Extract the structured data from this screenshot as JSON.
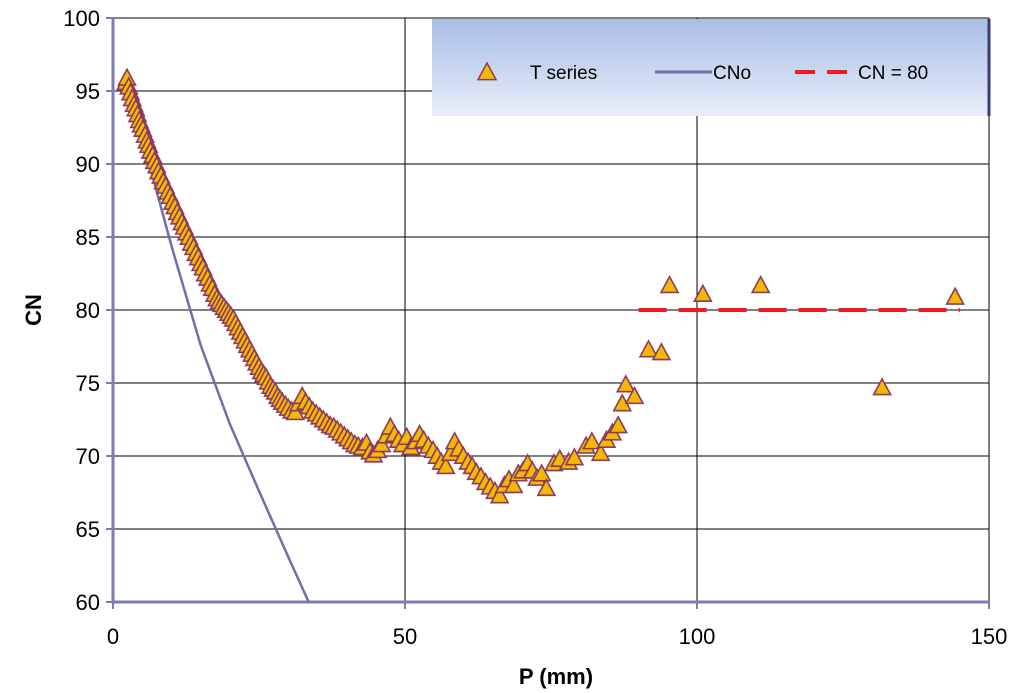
{
  "chart_data": {
    "type": "scatter",
    "title": "",
    "xlabel": "P (mm)",
    "ylabel": "CN",
    "xlim": [
      0,
      150
    ],
    "ylim": [
      60,
      100
    ],
    "xticks": [
      0,
      50,
      100,
      150
    ],
    "yticks": [
      60,
      65,
      70,
      75,
      80,
      85,
      90,
      95,
      100
    ],
    "grid": {
      "vertical": true,
      "horizontal": true
    },
    "legend_position": "top-right",
    "colors": {
      "marker_fill": "#f5b800",
      "marker_edge": "#8b3a62",
      "cno_line": "#7070a8",
      "cn80_line": "#ee1c1c",
      "grid": "#000000",
      "axis": "#7c7cb4",
      "legend_bg_top": "#a9bde6",
      "legend_bg_bottom": "#e9eef9"
    },
    "series": [
      {
        "name": "T series",
        "kind": "scatter",
        "marker": "triangle",
        "points": [
          [
            2.2,
            95.6
          ],
          [
            2.4,
            95.9
          ],
          [
            2.7,
            95.3
          ],
          [
            3.0,
            94.9
          ],
          [
            3.3,
            94.5
          ],
          [
            3.6,
            94.1
          ],
          [
            3.9,
            93.8
          ],
          [
            4.2,
            93.4
          ],
          [
            4.5,
            93.0
          ],
          [
            4.8,
            92.7
          ],
          [
            5.1,
            92.4
          ],
          [
            5.5,
            92.0
          ],
          [
            5.8,
            91.6
          ],
          [
            6.1,
            91.3
          ],
          [
            6.4,
            90.9
          ],
          [
            6.8,
            90.6
          ],
          [
            7.1,
            90.2
          ],
          [
            7.5,
            89.9
          ],
          [
            7.8,
            89.5
          ],
          [
            8.2,
            89.2
          ],
          [
            8.6,
            88.8
          ],
          [
            9.0,
            88.5
          ],
          [
            9.4,
            88.1
          ],
          [
            9.8,
            87.8
          ],
          [
            10.2,
            87.4
          ],
          [
            10.6,
            87.1
          ],
          [
            11.0,
            86.7
          ],
          [
            11.4,
            86.4
          ],
          [
            11.8,
            86.0
          ],
          [
            12.2,
            85.7
          ],
          [
            12.6,
            85.3
          ],
          [
            13.0,
            85.0
          ],
          [
            13.4,
            84.6
          ],
          [
            13.8,
            84.3
          ],
          [
            14.2,
            83.9
          ],
          [
            14.6,
            83.6
          ],
          [
            15.0,
            83.2
          ],
          [
            15.4,
            82.9
          ],
          [
            15.8,
            82.5
          ],
          [
            16.2,
            82.2
          ],
          [
            16.6,
            81.8
          ],
          [
            17.0,
            81.5
          ],
          [
            17.4,
            81.1
          ],
          [
            17.8,
            80.8
          ],
          [
            18.2,
            80.6
          ],
          [
            18.6,
            80.4
          ],
          [
            19.0,
            80.2
          ],
          [
            19.4,
            80.0
          ],
          [
            19.8,
            79.8
          ],
          [
            20.2,
            79.6
          ],
          [
            20.6,
            79.4
          ],
          [
            21.0,
            79.1
          ],
          [
            21.4,
            78.8
          ],
          [
            21.8,
            78.5
          ],
          [
            22.2,
            78.2
          ],
          [
            22.6,
            77.9
          ],
          [
            23.0,
            77.6
          ],
          [
            23.4,
            77.3
          ],
          [
            23.8,
            77.0
          ],
          [
            24.2,
            76.7
          ],
          [
            24.6,
            76.4
          ],
          [
            25.0,
            76.1
          ],
          [
            25.4,
            75.8
          ],
          [
            25.8,
            75.6
          ],
          [
            26.2,
            75.4
          ],
          [
            26.6,
            75.1
          ],
          [
            27.0,
            74.8
          ],
          [
            27.4,
            74.6
          ],
          [
            27.8,
            74.4
          ],
          [
            28.2,
            74.1
          ],
          [
            28.6,
            73.9
          ],
          [
            29.0,
            73.7
          ],
          [
            29.5,
            73.5
          ],
          [
            30.0,
            73.3
          ],
          [
            30.6,
            73.1
          ],
          [
            31.2,
            73.0
          ],
          [
            31.8,
            73.6
          ],
          [
            32.4,
            74.1
          ],
          [
            33.0,
            73.7
          ],
          [
            33.6,
            73.4
          ],
          [
            34.2,
            73.1
          ],
          [
            34.8,
            72.9
          ],
          [
            35.4,
            72.7
          ],
          [
            36.0,
            72.5
          ],
          [
            36.6,
            72.3
          ],
          [
            37.2,
            72.1
          ],
          [
            37.8,
            72.0
          ],
          [
            38.4,
            71.8
          ],
          [
            39.0,
            71.6
          ],
          [
            39.6,
            71.4
          ],
          [
            40.2,
            71.2
          ],
          [
            40.8,
            71.0
          ],
          [
            41.4,
            70.8
          ],
          [
            42.0,
            70.7
          ],
          [
            42.7,
            70.6
          ],
          [
            43.4,
            70.9
          ],
          [
            44.0,
            70.3
          ],
          [
            44.6,
            70.1
          ],
          [
            45.3,
            70.4
          ],
          [
            46.0,
            70.8
          ],
          [
            46.8,
            71.4
          ],
          [
            47.5,
            72.0
          ],
          [
            48.2,
            71.5
          ],
          [
            48.9,
            71.1
          ],
          [
            49.6,
            70.8
          ],
          [
            50.3,
            71.3
          ],
          [
            51.0,
            70.6
          ],
          [
            51.8,
            71.0
          ],
          [
            52.5,
            71.5
          ],
          [
            53.2,
            71.1
          ],
          [
            54.0,
            70.7
          ],
          [
            54.8,
            70.4
          ],
          [
            55.5,
            70.0
          ],
          [
            56.2,
            69.6
          ],
          [
            57.0,
            69.3
          ],
          [
            57.8,
            70.2
          ],
          [
            58.5,
            71.0
          ],
          [
            59.2,
            70.5
          ],
          [
            60.0,
            70.0
          ],
          [
            60.8,
            69.6
          ],
          [
            61.5,
            69.3
          ],
          [
            62.2,
            68.9
          ],
          [
            63.0,
            68.6
          ],
          [
            63.8,
            68.2
          ],
          [
            64.6,
            67.9
          ],
          [
            65.4,
            67.6
          ],
          [
            66.2,
            67.3
          ],
          [
            67.0,
            68.0
          ],
          [
            67.8,
            68.4
          ],
          [
            68.6,
            68.0
          ],
          [
            69.4,
            68.8
          ],
          [
            70.2,
            69.0
          ],
          [
            71.0,
            69.5
          ],
          [
            71.8,
            69.0
          ],
          [
            72.6,
            68.5
          ],
          [
            73.4,
            68.8
          ],
          [
            74.2,
            67.8
          ],
          [
            75.5,
            69.5
          ],
          [
            76.5,
            69.8
          ],
          [
            78.0,
            69.6
          ],
          [
            79.0,
            69.9
          ],
          [
            81.0,
            70.7
          ],
          [
            82.0,
            71.0
          ],
          [
            83.5,
            70.2
          ],
          [
            84.5,
            71.1
          ],
          [
            85.5,
            71.6
          ],
          [
            86.5,
            72.1
          ],
          [
            87.2,
            73.6
          ],
          [
            87.8,
            74.9
          ],
          [
            89.3,
            74.1
          ],
          [
            91.7,
            77.3
          ],
          [
            93.9,
            77.1
          ],
          [
            95.3,
            81.7
          ],
          [
            101.0,
            81.1
          ],
          [
            110.9,
            81.7
          ],
          [
            131.7,
            74.7
          ],
          [
            144.2,
            80.9
          ]
        ]
      },
      {
        "name": "CNo",
        "kind": "line",
        "points": [
          [
            2.2,
            96.0
          ],
          [
            5.0,
            91.8
          ],
          [
            10.0,
            84.4
          ],
          [
            15.0,
            77.6
          ],
          [
            20.0,
            72.2
          ],
          [
            25.0,
            67.6
          ],
          [
            30.0,
            63.1
          ],
          [
            33.5,
            60.0
          ]
        ]
      },
      {
        "name": "CN = 80",
        "kind": "dashed-line",
        "points": [
          [
            90.0,
            80.0
          ],
          [
            145.0,
            80.0
          ]
        ]
      }
    ]
  }
}
